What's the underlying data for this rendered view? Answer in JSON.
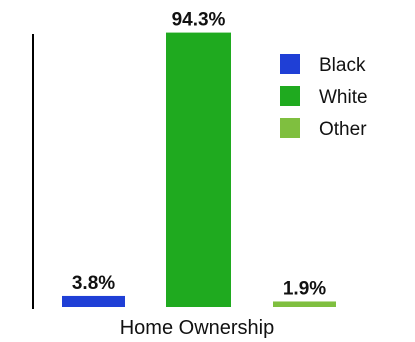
{
  "chart_data": {
    "type": "bar",
    "xlabel": "Home Ownership",
    "ylim": [
      0,
      100
    ],
    "series": [
      {
        "name": "Black",
        "value": 3.8,
        "label": "3.8%",
        "color": "#1f3fd6"
      },
      {
        "name": "White",
        "value": 94.3,
        "label": "94.3%",
        "color": "#1faa1f"
      },
      {
        "name": "Other",
        "value": 1.9,
        "label": "1.9%",
        "color": "#7fbf3f"
      }
    ],
    "legend_position": "top-right",
    "grid": false
  }
}
